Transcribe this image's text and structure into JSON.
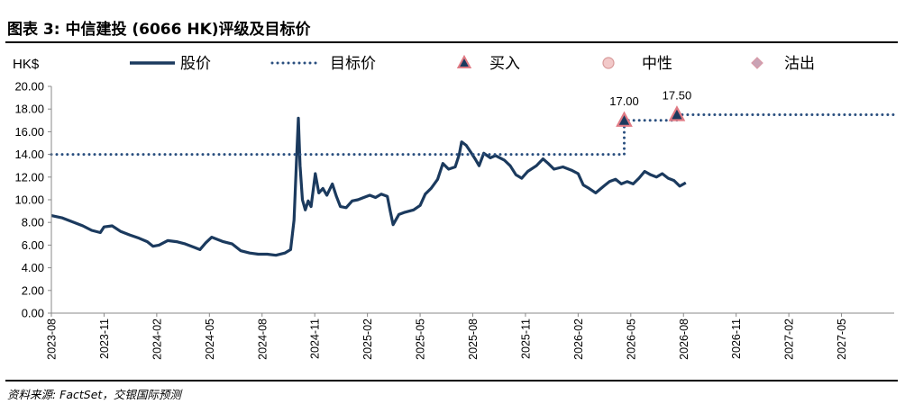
{
  "figure_title": "图表 3: 中信建投 (6066 HK)评级及目标价",
  "source": "资料来源: FactSet，交银国际预测",
  "colors": {
    "price_line": "#1b3a5e",
    "target_line": "#2a4f7f",
    "buy_marker_fill": "#1b3a5e",
    "buy_marker_stroke": "#e07a84",
    "neutral_marker_fill": "#f2c9c9",
    "sell_marker_fill": "#c9a3b5"
  },
  "chart_data": {
    "type": "line",
    "ylabel": "HK$",
    "ylim": [
      0,
      20
    ],
    "yticks": [
      "0.00",
      "2.00",
      "4.00",
      "6.00",
      "8.00",
      "10.00",
      "12.00",
      "14.00",
      "16.00",
      "18.00",
      "20.00"
    ],
    "xlim": [
      "2023-08",
      "2027-08"
    ],
    "xticks": [
      "2023-08",
      "2023-11",
      "2024-02",
      "2024-05",
      "2024-08",
      "2024-11",
      "2025-02",
      "2025-05",
      "2025-08",
      "2025-11",
      "2026-02",
      "2026-05",
      "2026-08",
      "2026-11",
      "2027-02",
      "2027-05"
    ],
    "grid": false,
    "legend": {
      "placement": "top",
      "entries": [
        {
          "key": "price",
          "label": "股价",
          "symbol": "solid-line"
        },
        {
          "key": "target",
          "label": "目标价",
          "symbol": "dotted-line"
        },
        {
          "key": "buy",
          "label": "买入",
          "symbol": "triangle"
        },
        {
          "key": "neutral",
          "label": "中性",
          "symbol": "circle"
        },
        {
          "key": "sell",
          "label": "沽出",
          "symbol": "diamond"
        }
      ]
    },
    "series": [
      {
        "key": "price",
        "style": "solid",
        "points": [
          [
            "2023-08-01",
            8.6
          ],
          [
            "2023-08-20",
            8.4
          ],
          [
            "2023-09-10",
            8.0
          ],
          [
            "2023-09-25",
            7.7
          ],
          [
            "2023-10-10",
            7.3
          ],
          [
            "2023-10-25",
            7.1
          ],
          [
            "2023-11-01",
            7.6
          ],
          [
            "2023-11-15",
            7.7
          ],
          [
            "2023-11-30",
            7.2
          ],
          [
            "2023-12-15",
            6.9
          ],
          [
            "2024-01-01",
            6.6
          ],
          [
            "2024-01-15",
            6.3
          ],
          [
            "2024-01-25",
            5.9
          ],
          [
            "2024-02-05",
            6.0
          ],
          [
            "2024-02-20",
            6.4
          ],
          [
            "2024-03-05",
            6.3
          ],
          [
            "2024-03-20",
            6.1
          ],
          [
            "2024-04-05",
            5.8
          ],
          [
            "2024-04-15",
            5.6
          ],
          [
            "2024-04-25",
            6.2
          ],
          [
            "2024-05-05",
            6.7
          ],
          [
            "2024-05-15",
            6.5
          ],
          [
            "2024-05-25",
            6.3
          ],
          [
            "2024-06-10",
            6.1
          ],
          [
            "2024-06-25",
            5.5
          ],
          [
            "2024-07-10",
            5.3
          ],
          [
            "2024-07-25",
            5.2
          ],
          [
            "2024-08-10",
            5.2
          ],
          [
            "2024-08-25",
            5.1
          ],
          [
            "2024-09-10",
            5.3
          ],
          [
            "2024-09-20",
            5.6
          ],
          [
            "2024-09-26",
            8.2
          ],
          [
            "2024-09-30",
            13.2
          ],
          [
            "2024-10-03",
            17.2
          ],
          [
            "2024-10-06",
            13.0
          ],
          [
            "2024-10-10",
            10.0
          ],
          [
            "2024-10-15",
            9.1
          ],
          [
            "2024-10-20",
            9.9
          ],
          [
            "2024-10-25",
            9.4
          ],
          [
            "2024-11-02",
            12.3
          ],
          [
            "2024-11-08",
            10.6
          ],
          [
            "2024-11-15",
            11.0
          ],
          [
            "2024-11-22",
            10.4
          ],
          [
            "2024-12-01",
            11.4
          ],
          [
            "2024-12-08",
            10.3
          ],
          [
            "2024-12-15",
            9.4
          ],
          [
            "2024-12-25",
            9.3
          ],
          [
            "2025-01-05",
            9.9
          ],
          [
            "2025-01-15",
            10.0
          ],
          [
            "2025-01-25",
            10.2
          ],
          [
            "2025-02-05",
            10.4
          ],
          [
            "2025-02-15",
            10.2
          ],
          [
            "2025-02-25",
            10.5
          ],
          [
            "2025-03-05",
            10.3
          ],
          [
            "2025-03-10",
            9.0
          ],
          [
            "2025-03-15",
            7.8
          ],
          [
            "2025-03-25",
            8.7
          ],
          [
            "2025-04-05",
            8.9
          ],
          [
            "2025-04-20",
            9.1
          ],
          [
            "2025-05-01",
            9.5
          ],
          [
            "2025-05-10",
            10.5
          ],
          [
            "2025-05-20",
            11.0
          ],
          [
            "2025-06-01",
            11.8
          ],
          [
            "2025-06-10",
            13.2
          ],
          [
            "2025-06-20",
            12.7
          ],
          [
            "2025-07-01",
            12.9
          ],
          [
            "2025-07-08",
            14.0
          ],
          [
            "2025-07-12",
            15.1
          ],
          [
            "2025-07-20",
            14.8
          ],
          [
            "2025-07-28",
            14.2
          ],
          [
            "2025-08-05",
            13.6
          ],
          [
            "2025-08-12",
            13.0
          ],
          [
            "2025-08-20",
            14.1
          ],
          [
            "2025-09-01",
            13.7
          ],
          [
            "2025-09-10",
            13.9
          ],
          [
            "2025-09-25",
            13.5
          ],
          [
            "2025-10-05",
            13.0
          ],
          [
            "2025-10-15",
            12.2
          ],
          [
            "2025-10-25",
            11.9
          ],
          [
            "2025-11-05",
            12.5
          ],
          [
            "2025-11-20",
            13.0
          ],
          [
            "2025-12-01",
            13.6
          ],
          [
            "2025-12-10",
            13.2
          ],
          [
            "2025-12-20",
            12.7
          ],
          [
            "2026-01-05",
            12.9
          ],
          [
            "2026-01-20",
            12.6
          ],
          [
            "2026-02-01",
            12.3
          ],
          [
            "2026-02-10",
            11.3
          ],
          [
            "2026-02-20",
            11.0
          ],
          [
            "2026-03-01",
            10.6
          ],
          [
            "2026-03-15",
            11.2
          ],
          [
            "2026-03-25",
            11.6
          ],
          [
            "2026-04-05",
            11.8
          ],
          [
            "2026-04-15",
            11.4
          ],
          [
            "2026-04-25",
            11.6
          ],
          [
            "2026-05-05",
            11.4
          ],
          [
            "2026-05-15",
            11.9
          ],
          [
            "2026-05-25",
            12.5
          ],
          [
            "2026-06-05",
            12.2
          ],
          [
            "2026-06-15",
            12.0
          ],
          [
            "2026-06-25",
            12.3
          ],
          [
            "2026-07-05",
            11.9
          ],
          [
            "2026-07-15",
            11.7
          ],
          [
            "2026-07-25",
            11.2
          ],
          [
            "2026-08-05",
            11.5
          ]
        ]
      },
      {
        "key": "target",
        "style": "dotted",
        "points": [
          [
            "2023-08-01",
            14.0
          ],
          [
            "2026-04-20",
            14.0
          ],
          [
            "2026-04-20",
            17.0
          ],
          [
            "2026-07-20",
            17.0
          ],
          [
            "2026-07-20",
            17.5
          ],
          [
            "2027-08-01",
            17.5
          ]
        ]
      }
    ],
    "markers": [
      {
        "key": "buy",
        "date": "2026-04-20",
        "value": 17.0,
        "label": "17.00"
      },
      {
        "key": "buy",
        "date": "2026-07-20",
        "value": 17.5,
        "label": "17.50"
      }
    ]
  }
}
